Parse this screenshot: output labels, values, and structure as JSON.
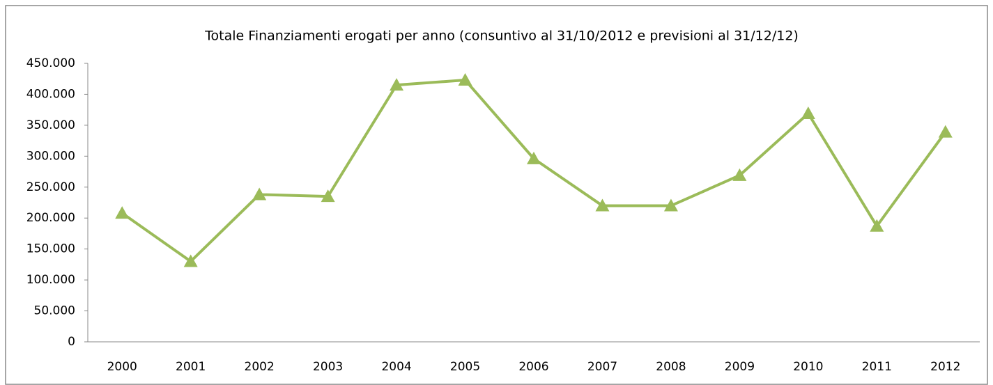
{
  "chart_data": {
    "type": "line",
    "title": "Totale Finanziamenti erogati per anno (consuntivo al 31/10/2012 e previsioni al 31/12/12)",
    "categories": [
      "2000",
      "2001",
      "2002",
      "2003",
      "2004",
      "2005",
      "2006",
      "2007",
      "2008",
      "2009",
      "2010",
      "2011",
      "2012"
    ],
    "series": [
      {
        "name": "Totale Finanziamenti",
        "color": "#9bbb59",
        "values": [
          208000,
          130000,
          238000,
          235000,
          415000,
          423000,
          296000,
          220000,
          220000,
          269000,
          369000,
          187000,
          339000
        ]
      }
    ],
    "ylim": [
      0,
      450000
    ],
    "yticks": [
      0,
      {
        "value": 50000,
        "label": "50.000"
      },
      {
        "value": 100000,
        "label": "100.000"
      },
      {
        "value": 150000,
        "label": "150.000"
      },
      {
        "value": 200000,
        "label": "200.000"
      },
      {
        "value": 250000,
        "label": "250.000"
      },
      {
        "value": 300000,
        "label": "300.000"
      },
      {
        "value": 350000,
        "label": "350.000"
      },
      {
        "value": 400000,
        "label": "400.000"
      },
      {
        "value": 450000,
        "label": "450.000"
      }
    ],
    "grid": false,
    "legend": false
  }
}
